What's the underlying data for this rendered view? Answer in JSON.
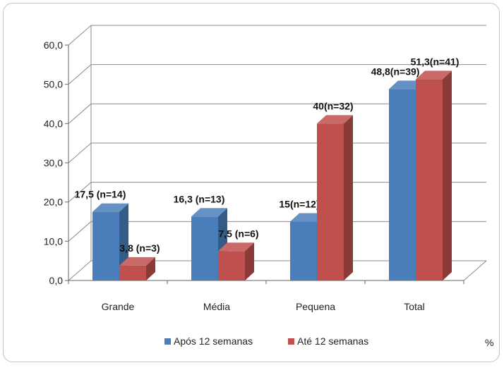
{
  "chart_data": {
    "type": "bar",
    "title": "",
    "xlabel": "",
    "ylabel": "",
    "unit_label": "%",
    "categories": [
      "Grande",
      "Média",
      "Pequena",
      "Total"
    ],
    "ylim": [
      0,
      60
    ],
    "yticks": [
      "0,0",
      "10,0",
      "20,0",
      "30,0",
      "40,0",
      "50,0",
      "60,0"
    ],
    "grid": true,
    "legend_position": "bottom",
    "series": [
      {
        "name": "Após 12 semanas",
        "color": "#4a7ebb",
        "values": [
          17.5,
          16.3,
          15,
          48.8
        ],
        "labels": [
          "17,5 (n=14)",
          "16,3 (n=13)",
          "15(n=12)",
          "48,8(n=39)"
        ]
      },
      {
        "name": "Até 12 semanas",
        "color": "#c0504d",
        "values": [
          3.8,
          7.5,
          40,
          51.3
        ],
        "labels": [
          "3,8 (n=3)",
          "7,5 (n=6)",
          "40(n=32)",
          "51,3(n=41)"
        ]
      }
    ]
  }
}
